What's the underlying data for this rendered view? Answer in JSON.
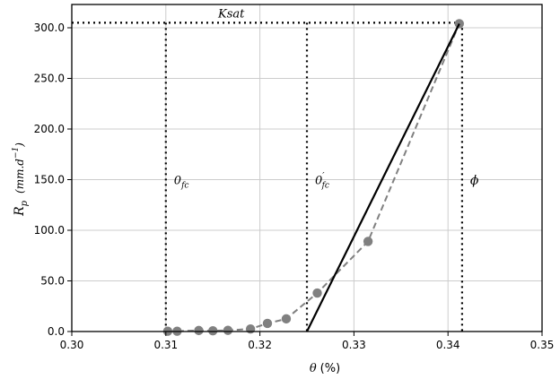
{
  "chart_data": {
    "type": "scatter",
    "xlabel_symbol": "θ",
    "xlabel_unit": "(%)",
    "ylabel_symbol": "R",
    "ylabel_subscript": "p",
    "ylabel_unit_open": "(mm.d",
    "ylabel_unit_exp": "−1",
    "ylabel_unit_close": ")",
    "xlim": [
      0.3,
      0.35
    ],
    "ylim": [
      0,
      300
    ],
    "xticks": [
      0.3,
      0.31,
      0.32,
      0.33,
      0.34,
      0.35
    ],
    "xtick_labels": [
      "0.30",
      "0.31",
      "0.32",
      "0.33",
      "0.34",
      "0.35"
    ],
    "yticks": [
      0,
      50,
      100,
      150,
      200,
      250,
      300
    ],
    "ytick_labels": [
      "0.0",
      "50.0",
      "100.0",
      "150.0",
      "200.0",
      "250.0",
      "300.0"
    ],
    "grid": true,
    "series": [
      {
        "style": "dashed-markers",
        "color": "#808080",
        "x": [
          0.3102,
          0.3112,
          0.3135,
          0.315,
          0.3166,
          0.319,
          0.3208,
          0.3228,
          0.3261,
          0.3315,
          0.3412
        ],
        "y": [
          0.3,
          0.3,
          1.0,
          0.7,
          1.2,
          2.5,
          8.0,
          12.5,
          38.0,
          89.0,
          304.0
        ]
      },
      {
        "style": "solid-line",
        "color": "#000000",
        "x": [
          0.325,
          0.3412
        ],
        "y": [
          0,
          304.0
        ]
      }
    ],
    "reference_lines": {
      "ksat": 305.0,
      "theta_fc": 0.31,
      "theta_fc_prime": 0.325,
      "phi": 0.3415
    },
    "annotations": {
      "ksat": "Ksat",
      "theta_fc_base": "0",
      "theta_fc_sub": "fc",
      "theta_fc_prime_base": "0",
      "theta_fc_prime_sup": "′",
      "theta_fc_prime_sub": "fc",
      "phi": "ϕ"
    },
    "annotation_y": {
      "ksat": 306,
      "labels": 150
    }
  }
}
